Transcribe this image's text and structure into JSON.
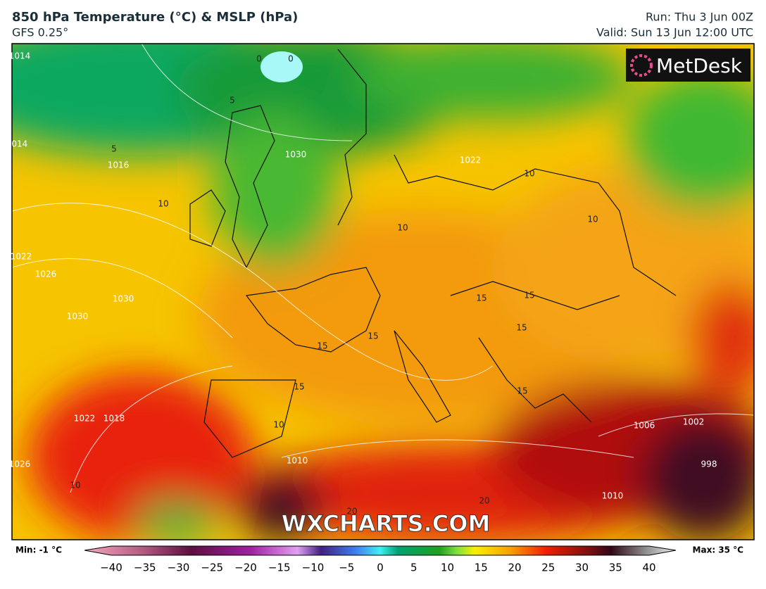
{
  "header": {
    "title": "850 hPa Temperature (°C) & MSLP (hPa)",
    "subtitle": "GFS 0.25°",
    "run": "Run: Thu 3 Jun 00Z",
    "valid": "Valid: Sun 13 Jun 12:00 UTC"
  },
  "logo": "MetDesk",
  "watermark": "WXCHARTS.COM",
  "map": {
    "contour_labels": [
      "1014",
      "1014",
      "1022",
      "1022",
      "1026",
      "1030",
      "1030",
      "1016",
      "1018",
      "1022",
      "1026",
      "1010",
      "1010",
      "1006",
      "1002",
      "998",
      "1030",
      "0",
      "0",
      "5",
      "5",
      "10",
      "10",
      "10",
      "10",
      "10",
      "15",
      "15",
      "15",
      "15",
      "15",
      "15",
      "15",
      "10",
      "20",
      "20"
    ]
  },
  "colorbar": {
    "min_label": "Min: -1 °C",
    "max_label": "Max: 35 °C",
    "ticks": [
      "−40",
      "−35",
      "−30",
      "−25",
      "−20",
      "−15",
      "−10",
      "−5",
      "0",
      "5",
      "10",
      "15",
      "20",
      "25",
      "30",
      "35",
      "40"
    ]
  }
}
